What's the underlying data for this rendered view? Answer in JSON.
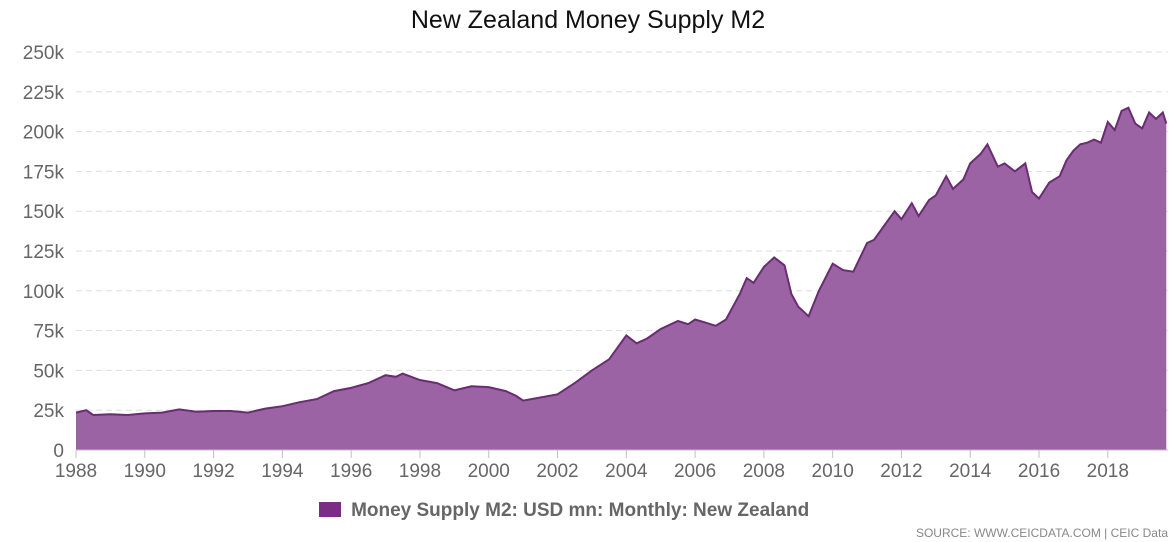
{
  "colors": {
    "series_fill": "#9b62a4",
    "series_line": "#6a2c73",
    "legend_swatch": "#7b2d83",
    "grid": "#dddddd"
  },
  "source_text": "SOURCE: WWW.CEICDATA.COM | CEIC Data",
  "chart_data": {
    "type": "area",
    "title": "New Zealand Money Supply M2",
    "xlabel": "",
    "ylabel": "",
    "xlim": [
      1988,
      2019.75
    ],
    "ylim": [
      0,
      250000
    ],
    "grid": true,
    "legend_position": "bottom",
    "y_ticks": [
      0,
      25000,
      50000,
      75000,
      100000,
      125000,
      150000,
      175000,
      200000,
      225000,
      250000
    ],
    "y_tick_labels": [
      "0",
      "25k",
      "50k",
      "75k",
      "100k",
      "125k",
      "150k",
      "175k",
      "200k",
      "225k",
      "250k"
    ],
    "x_ticks": [
      1988,
      1990,
      1992,
      1994,
      1996,
      1998,
      2000,
      2002,
      2004,
      2006,
      2008,
      2010,
      2012,
      2014,
      2016,
      2018
    ],
    "x_tick_labels": [
      "1988",
      "1990",
      "1992",
      "1994",
      "1996",
      "1998",
      "2000",
      "2002",
      "2004",
      "2006",
      "2008",
      "2010",
      "2012",
      "2014",
      "2016",
      "2018"
    ],
    "series": [
      {
        "name": "Money Supply M2: USD mn: Monthly: New Zealand",
        "x": [
          1988.0,
          1988.3,
          1988.5,
          1989.0,
          1989.5,
          1990.0,
          1990.5,
          1991.0,
          1991.5,
          1992.0,
          1992.5,
          1993.0,
          1993.5,
          1994.0,
          1994.5,
          1995.0,
          1995.5,
          1996.0,
          1996.5,
          1997.0,
          1997.3,
          1997.5,
          1998.0,
          1998.5,
          1999.0,
          1999.5,
          2000.0,
          2000.5,
          2000.8,
          2001.0,
          2001.5,
          2002.0,
          2002.5,
          2003.0,
          2003.5,
          2004.0,
          2004.3,
          2004.6,
          2005.0,
          2005.5,
          2005.8,
          2006.0,
          2006.3,
          2006.6,
          2006.9,
          2007.1,
          2007.3,
          2007.5,
          2007.7,
          2008.0,
          2008.3,
          2008.6,
          2008.8,
          2009.0,
          2009.3,
          2009.6,
          2010.0,
          2010.3,
          2010.6,
          2011.0,
          2011.2,
          2011.5,
          2011.8,
          2012.0,
          2012.3,
          2012.5,
          2012.8,
          2013.0,
          2013.3,
          2013.5,
          2013.8,
          2014.0,
          2014.3,
          2014.5,
          2014.8,
          2015.0,
          2015.3,
          2015.6,
          2015.8,
          2016.0,
          2016.3,
          2016.6,
          2016.8,
          2017.0,
          2017.2,
          2017.4,
          2017.6,
          2017.8,
          2018.0,
          2018.2,
          2018.4,
          2018.6,
          2018.8,
          2019.0,
          2019.2,
          2019.4,
          2019.6,
          2019.7
        ],
        "values": [
          23500,
          25000,
          22000,
          22500,
          22000,
          23000,
          23500,
          25500,
          24000,
          24500,
          24500,
          23500,
          26000,
          27500,
          30000,
          32000,
          37000,
          39000,
          42000,
          47000,
          46000,
          48000,
          44000,
          42000,
          37500,
          40000,
          39500,
          37000,
          34000,
          31000,
          33000,
          35000,
          42000,
          50000,
          57000,
          72000,
          67000,
          70000,
          76000,
          81000,
          79000,
          82000,
          80000,
          78000,
          82000,
          90000,
          98000,
          108000,
          105000,
          115000,
          121000,
          116000,
          98000,
          90000,
          84000,
          100000,
          117000,
          113000,
          112000,
          130000,
          132000,
          141000,
          150000,
          145000,
          155000,
          147000,
          157000,
          160000,
          172000,
          164000,
          170000,
          180000,
          186000,
          192000,
          178000,
          180000,
          175000,
          180000,
          162000,
          158000,
          168000,
          172000,
          182000,
          188000,
          192000,
          193000,
          195000,
          193000,
          206000,
          201000,
          213000,
          215000,
          205000,
          202000,
          212000,
          208000,
          212000,
          205000
        ]
      }
    ]
  }
}
